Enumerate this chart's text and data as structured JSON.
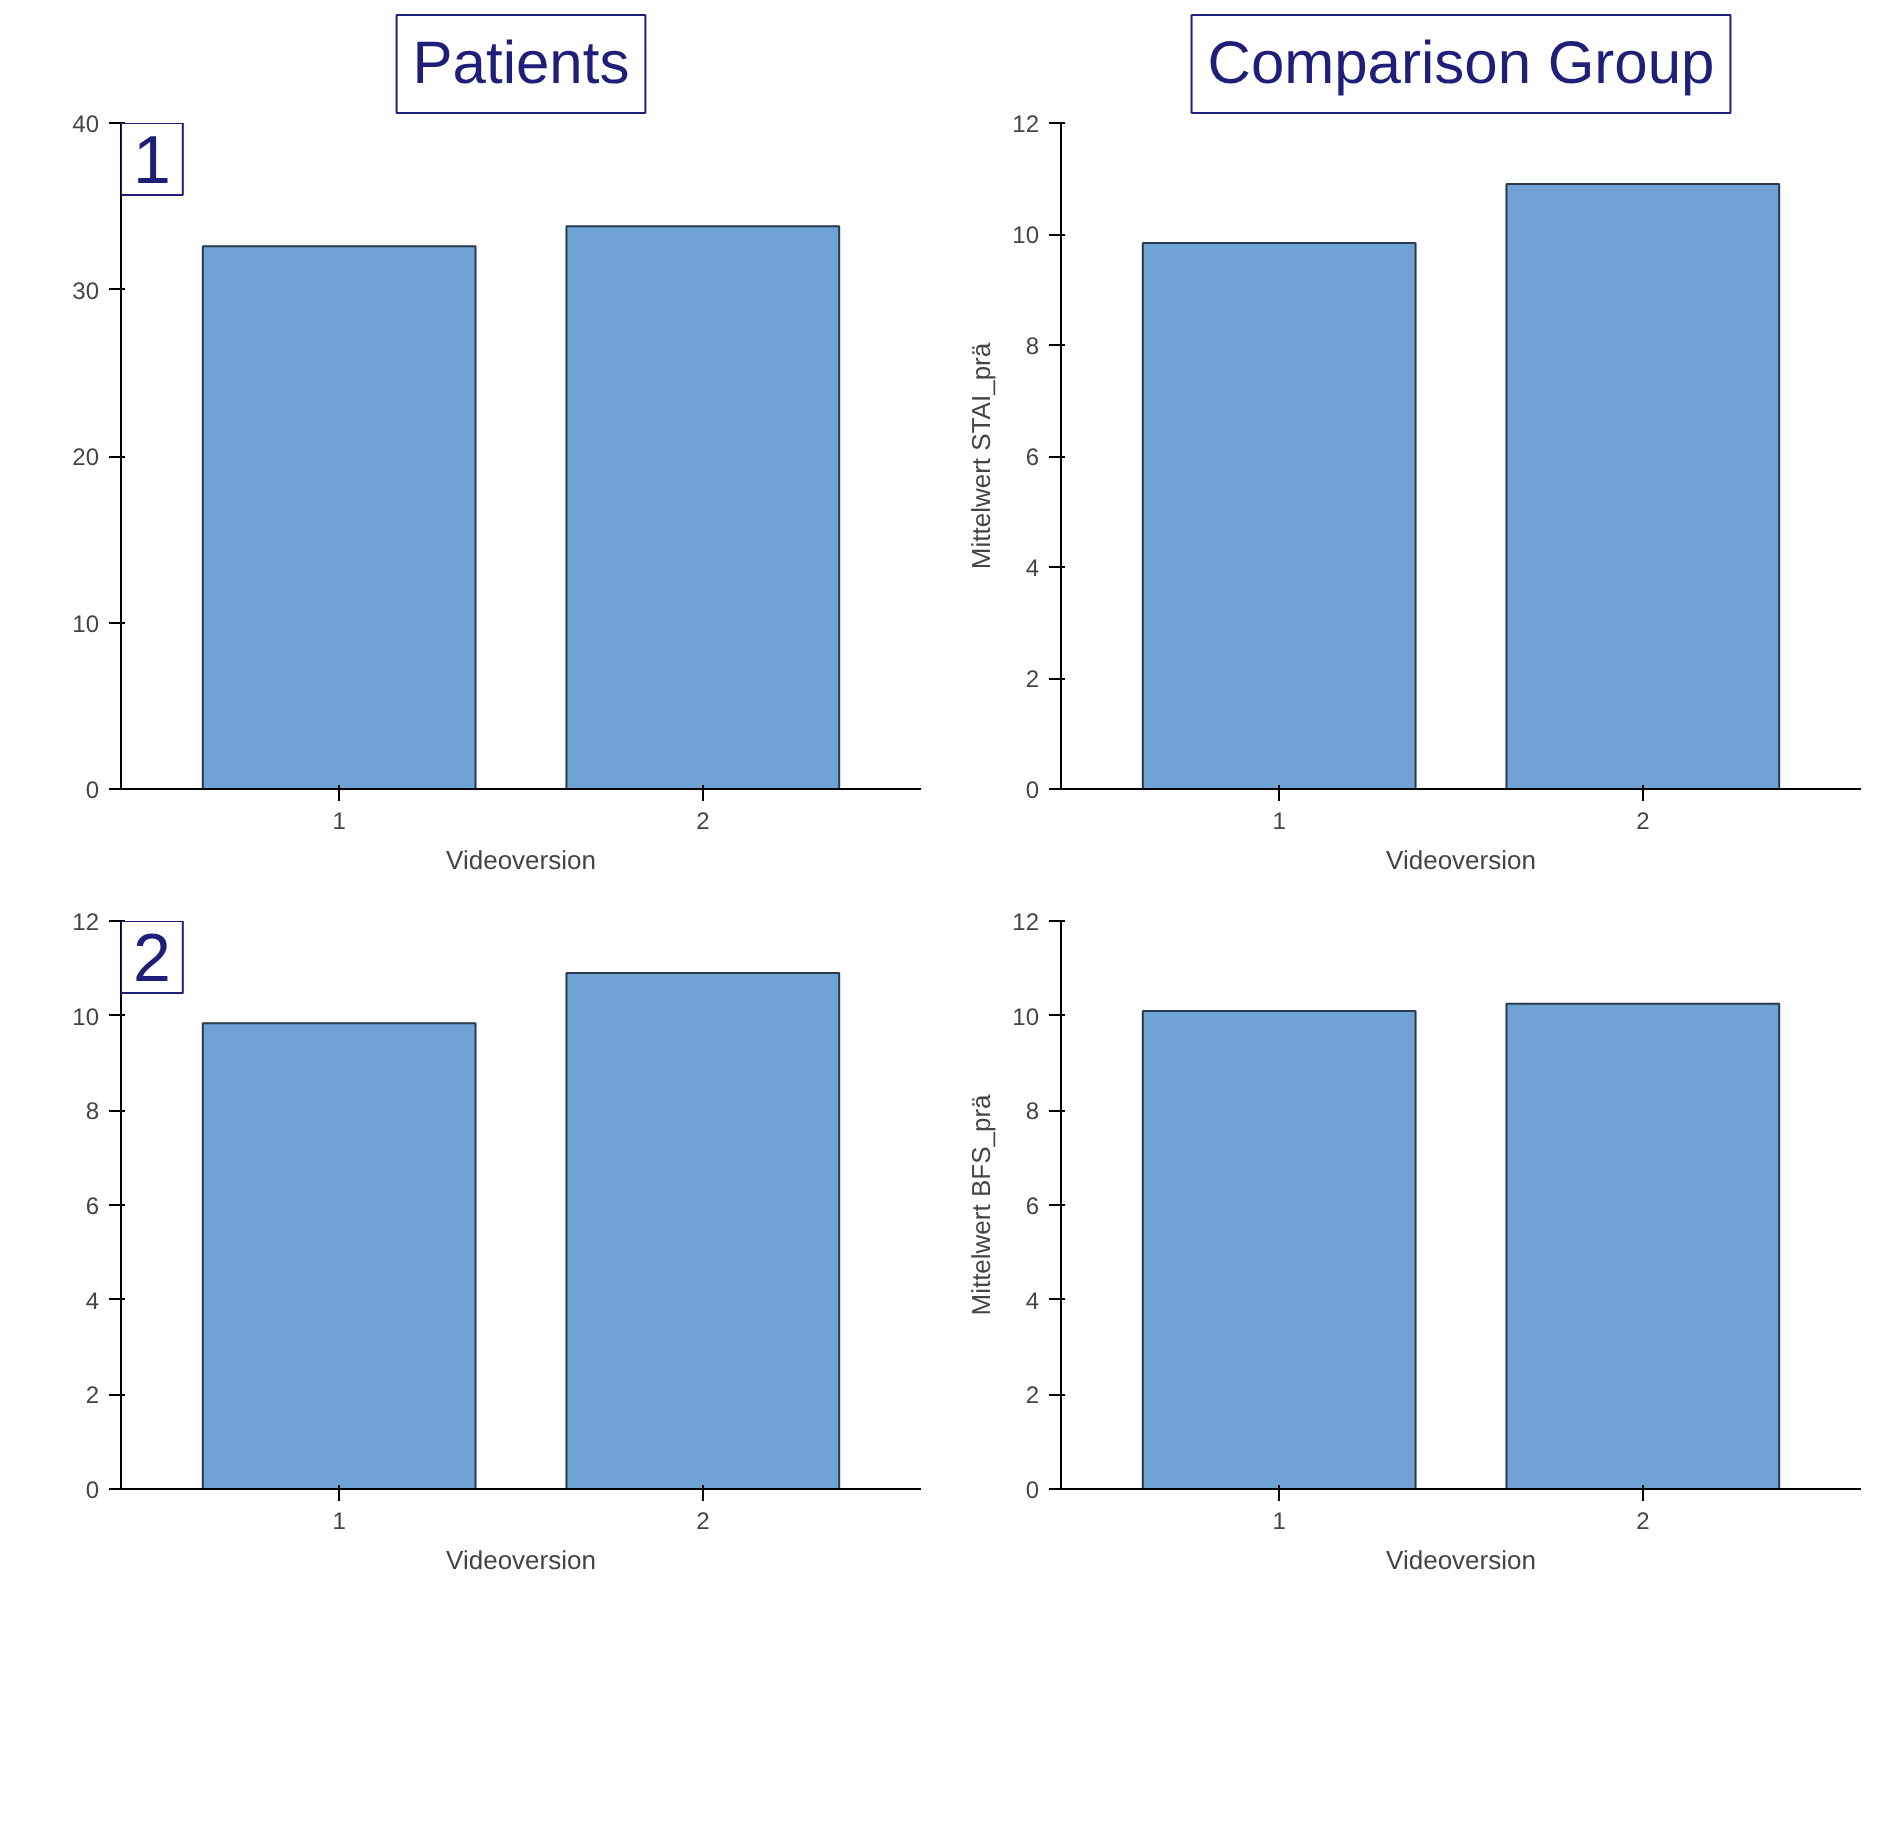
{
  "chart_data": [
    {
      "type": "bar",
      "title": "Patients",
      "xlabel": "Videoversion",
      "categories": [
        "1",
        "2"
      ],
      "values": [
        32.6,
        33.8
      ],
      "color": "#6fa3d6",
      "ylim": [
        0,
        40
      ],
      "yticks": [
        0,
        10,
        20,
        30,
        40
      ],
      "annotations": [
        "1"
      ]
    },
    {
      "type": "bar",
      "title": "Comparison Group",
      "xlabel": "Videoversion",
      "ylabel": "Mittelwert STAI_prä",
      "categories": [
        "1",
        "2"
      ],
      "values": [
        9.84,
        10.9
      ],
      "color": "#6fa3d6",
      "ylim": [
        0,
        12
      ],
      "yticks": [
        0,
        2,
        4,
        6,
        8,
        10,
        12
      ]
    },
    {
      "type": "bar",
      "xlabel": "Videoversion",
      "categories": [
        "1",
        "2"
      ],
      "values": [
        9.84,
        10.9
      ],
      "color": "#6fa3d6",
      "ylim": [
        0,
        12
      ],
      "yticks": [
        0,
        2,
        4,
        6,
        8,
        10,
        12
      ],
      "annotations": [
        "2"
      ]
    },
    {
      "type": "bar",
      "xlabel": "Videoversion",
      "ylabel": "Mittelwert BFS_prä",
      "categories": [
        "1",
        "2"
      ],
      "values": [
        10.1,
        10.25
      ],
      "color": "#6fa3d6",
      "ylim": [
        0,
        12
      ],
      "yticks": [
        0,
        2,
        4,
        6,
        8,
        10,
        12
      ]
    }
  ]
}
